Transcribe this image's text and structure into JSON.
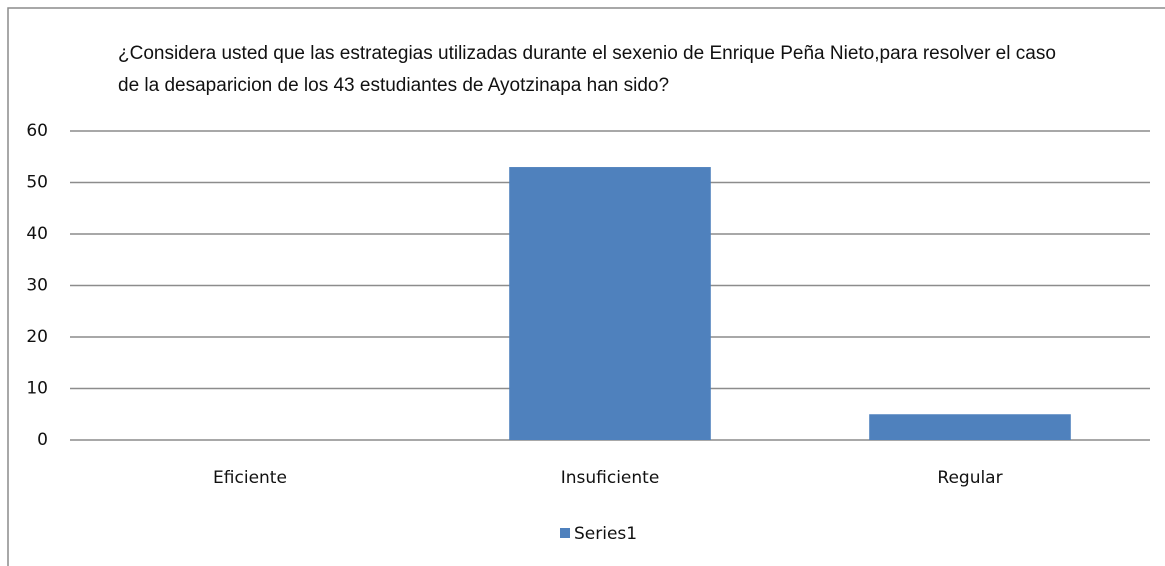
{
  "chart_data": {
    "type": "bar",
    "title": "¿Considera usted que las estrategias utilizadas durante el sexenio de Enrique Peña Nieto,para resolver el caso de la desaparicion de los 43 estudiantes de Ayotzinapa han sido?",
    "categories": [
      "Eficiente",
      "Insuficiente",
      "Regular"
    ],
    "series": [
      {
        "name": "Series1",
        "color": "#4f81bd",
        "values": [
          0,
          53,
          5
        ]
      }
    ],
    "ylim": [
      0,
      60
    ],
    "yticks": [
      0,
      10,
      20,
      30,
      40,
      50,
      60
    ],
    "grid": true,
    "legend": "bottom"
  }
}
